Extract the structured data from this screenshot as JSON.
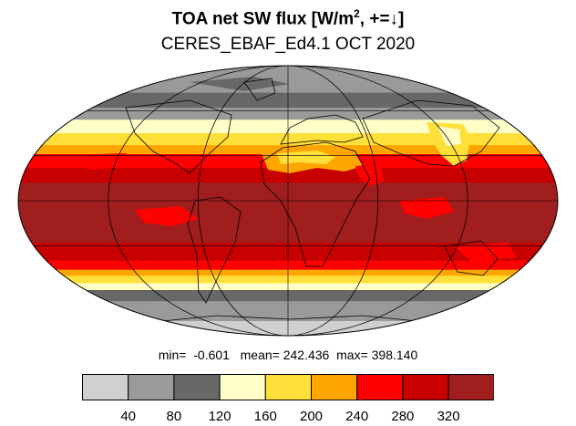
{
  "title": {
    "main": "TOA net SW flux [W/m",
    "sup": "2",
    "rest": ", +=↓]"
  },
  "subtitle": "CERES_EBAF_Ed4.1 OCT 2020",
  "stats": {
    "min_label": "min=",
    "min_value": "-0.601",
    "mean_label": "mean=",
    "mean_value": "242.436",
    "max_label": "max=",
    "max_value": "398.140"
  },
  "colorbar": {
    "colors": [
      "#d0d0d0",
      "#9a9a9a",
      "#686868",
      "#ffffc8",
      "#ffdf3a",
      "#ffa500",
      "#ff0000",
      "#c80000",
      "#a01e1e"
    ],
    "ticks": [
      "40",
      "80",
      "120",
      "160",
      "200",
      "240",
      "280",
      "320"
    ]
  },
  "map_bands": [
    {
      "lat_from": 90,
      "lat_to": 72,
      "color": "#9a9a9a"
    },
    {
      "lat_from": 72,
      "lat_to": 62,
      "color": "#686868"
    },
    {
      "lat_from": 62,
      "lat_to": 54,
      "color": "#9a9a9a"
    },
    {
      "lat_from": 54,
      "lat_to": 45,
      "color": "#ffffc8"
    },
    {
      "lat_from": 45,
      "lat_to": 37,
      "color": "#ffdf3a"
    },
    {
      "lat_from": 37,
      "lat_to": 31,
      "color": "#ffa500"
    },
    {
      "lat_from": 31,
      "lat_to": 22,
      "color": "#ff0000"
    },
    {
      "lat_from": 22,
      "lat_to": 12,
      "color": "#c80000"
    },
    {
      "lat_from": 12,
      "lat_to": -28,
      "color": "#a01e1e"
    },
    {
      "lat_from": -28,
      "lat_to": -40,
      "color": "#c80000"
    },
    {
      "lat_from": -40,
      "lat_to": -46,
      "color": "#ff0000"
    },
    {
      "lat_from": -46,
      "lat_to": -50,
      "color": "#ffa500"
    },
    {
      "lat_from": -50,
      "lat_to": -55,
      "color": "#ffdf3a"
    },
    {
      "lat_from": -55,
      "lat_to": -60,
      "color": "#ffffc8"
    },
    {
      "lat_from": -60,
      "lat_to": -67,
      "color": "#686868"
    },
    {
      "lat_from": -67,
      "lat_to": -90,
      "color": "#9a9a9a"
    }
  ]
}
